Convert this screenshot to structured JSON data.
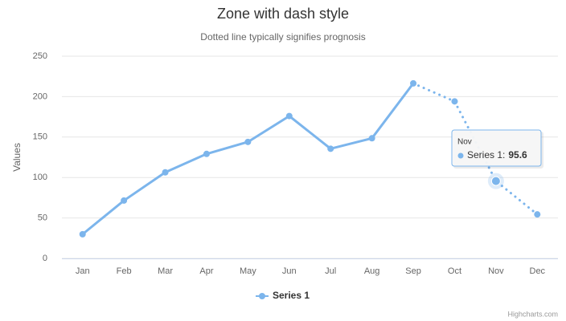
{
  "chart_data": {
    "type": "line",
    "title": "Zone with dash style",
    "subtitle": "Dotted line typically signifies prognosis",
    "y_axis_title": "Values",
    "categories": [
      "Jan",
      "Feb",
      "Mar",
      "Apr",
      "May",
      "Jun",
      "Jul",
      "Aug",
      "Sep",
      "Oct",
      "Nov",
      "Dec"
    ],
    "series": [
      {
        "name": "Series 1",
        "color": "#7cb5ec",
        "values": [
          29.9,
          71.5,
          106.4,
          129.2,
          144.0,
          176.0,
          135.6,
          148.5,
          216.4,
          194.1,
          95.6,
          54.4
        ]
      }
    ],
    "zone_x": 8,
    "zone_dash": "dot",
    "ylim": [
      0,
      250
    ],
    "yticks": [
      0,
      50,
      100,
      150,
      200,
      250
    ],
    "grid": true,
    "legend": "bottom",
    "tooltip": {
      "category": "Nov",
      "text": "Series 1:",
      "value": 95.6,
      "index": 10
    },
    "credits": "Highcharts.com"
  }
}
